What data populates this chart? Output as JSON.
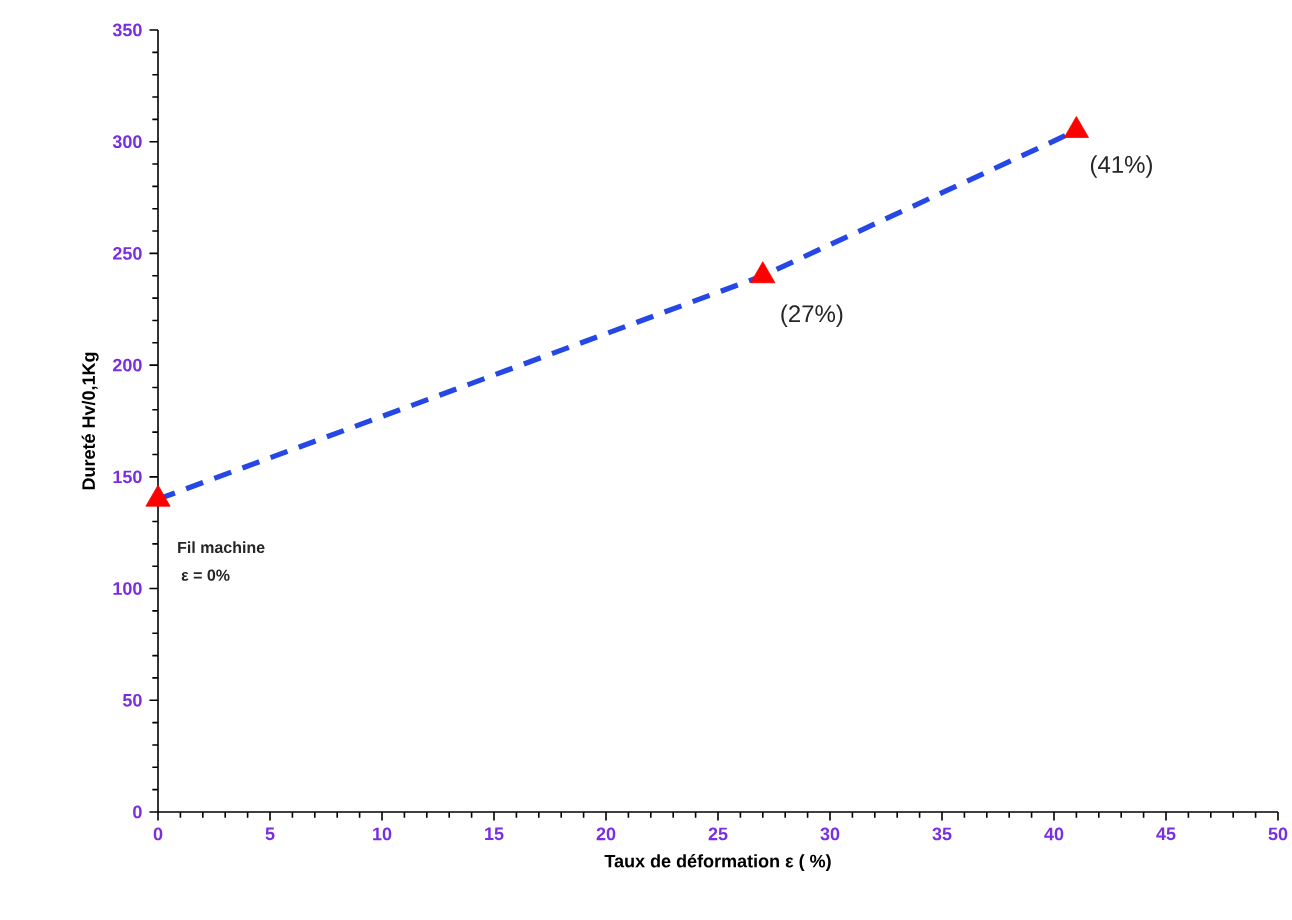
{
  "chart_data": {
    "type": "line",
    "xlabel": "Taux de déformation ε ( %)",
    "ylabel": "Dureté Hv/0,1Kg",
    "xlim": [
      0,
      50
    ],
    "xticks": [
      0,
      5,
      10,
      15,
      20,
      25,
      30,
      35,
      40,
      45,
      50
    ],
    "ylim": [
      0,
      350
    ],
    "yticks": [
      0,
      50,
      100,
      150,
      200,
      250,
      300,
      350
    ],
    "x": [
      0,
      27,
      41
    ],
    "series": [
      {
        "color": "#2447e6",
        "line_style": "dashed",
        "marker": "none",
        "values": [
          140,
          240,
          305
        ]
      },
      {
        "type": "scatter",
        "color": "#ff0000",
        "marker": "triangle",
        "values": [
          140,
          240,
          305
        ]
      }
    ],
    "annotations": [
      {
        "text": "Fil machine",
        "x": 0,
        "y": 140
      },
      "ε = 0%",
      {
        "text": "(27%)",
        "x": 27,
        "y": 240
      },
      {
        "text": "(41%)",
        "x": 41,
        "y": 305
      }
    ],
    "grid": false
  }
}
